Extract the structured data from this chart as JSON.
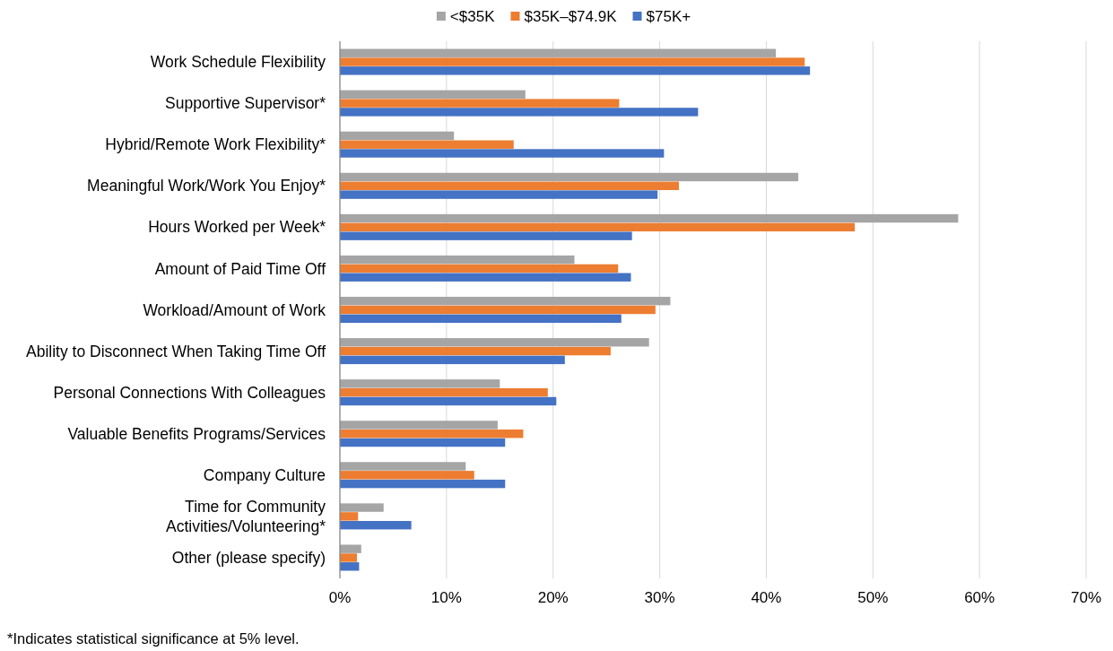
{
  "chart_data": {
    "type": "bar",
    "orientation": "horizontal",
    "categories": [
      "Work Schedule Flexibility",
      "Supportive Supervisor*",
      "Hybrid/Remote Work Flexibility*",
      "Meaningful Work/Work You Enjoy*",
      "Hours Worked per Week*",
      "Amount of Paid Time Off",
      "Workload/Amount of Work",
      "Ability to Disconnect When Taking Time Off",
      "Personal Connections With Colleagues",
      "Valuable Benefits Programs/Services",
      "Company Culture",
      "Time for Community\nActivities/Volunteering*",
      "Other (please specify)"
    ],
    "series": [
      {
        "name": "<$35K",
        "color": "#a5a5a5",
        "values": [
          40.9,
          17.4,
          10.7,
          43.0,
          58.0,
          22.0,
          31.0,
          29.0,
          15.0,
          14.8,
          11.8,
          4.1,
          2.0
        ]
      },
      {
        "name": "$35K–$74.9K",
        "color": "#ed7d31",
        "values": [
          43.6,
          26.2,
          16.3,
          31.8,
          48.3,
          26.1,
          29.6,
          25.4,
          19.5,
          17.2,
          12.6,
          1.7,
          1.6
        ]
      },
      {
        "name": "$75K+",
        "color": "#4472c4",
        "values": [
          44.1,
          33.6,
          30.4,
          29.8,
          27.4,
          27.3,
          26.4,
          21.1,
          20.3,
          15.5,
          15.5,
          6.7,
          1.8
        ]
      }
    ],
    "xlim": [
      0,
      70
    ],
    "xticks": [
      {
        "value": 0,
        "label": "0%"
      },
      {
        "value": 10,
        "label": "10%"
      },
      {
        "value": 20,
        "label": "20%"
      },
      {
        "value": 30,
        "label": "30%"
      },
      {
        "value": 40,
        "label": "40%"
      },
      {
        "value": 50,
        "label": "50%"
      },
      {
        "value": 60,
        "label": "60%"
      },
      {
        "value": 70,
        "label": "70%"
      }
    ],
    "grid": "x",
    "legend": "top",
    "annotations": [
      "*Indicates statistical significance at 5% level."
    ]
  }
}
